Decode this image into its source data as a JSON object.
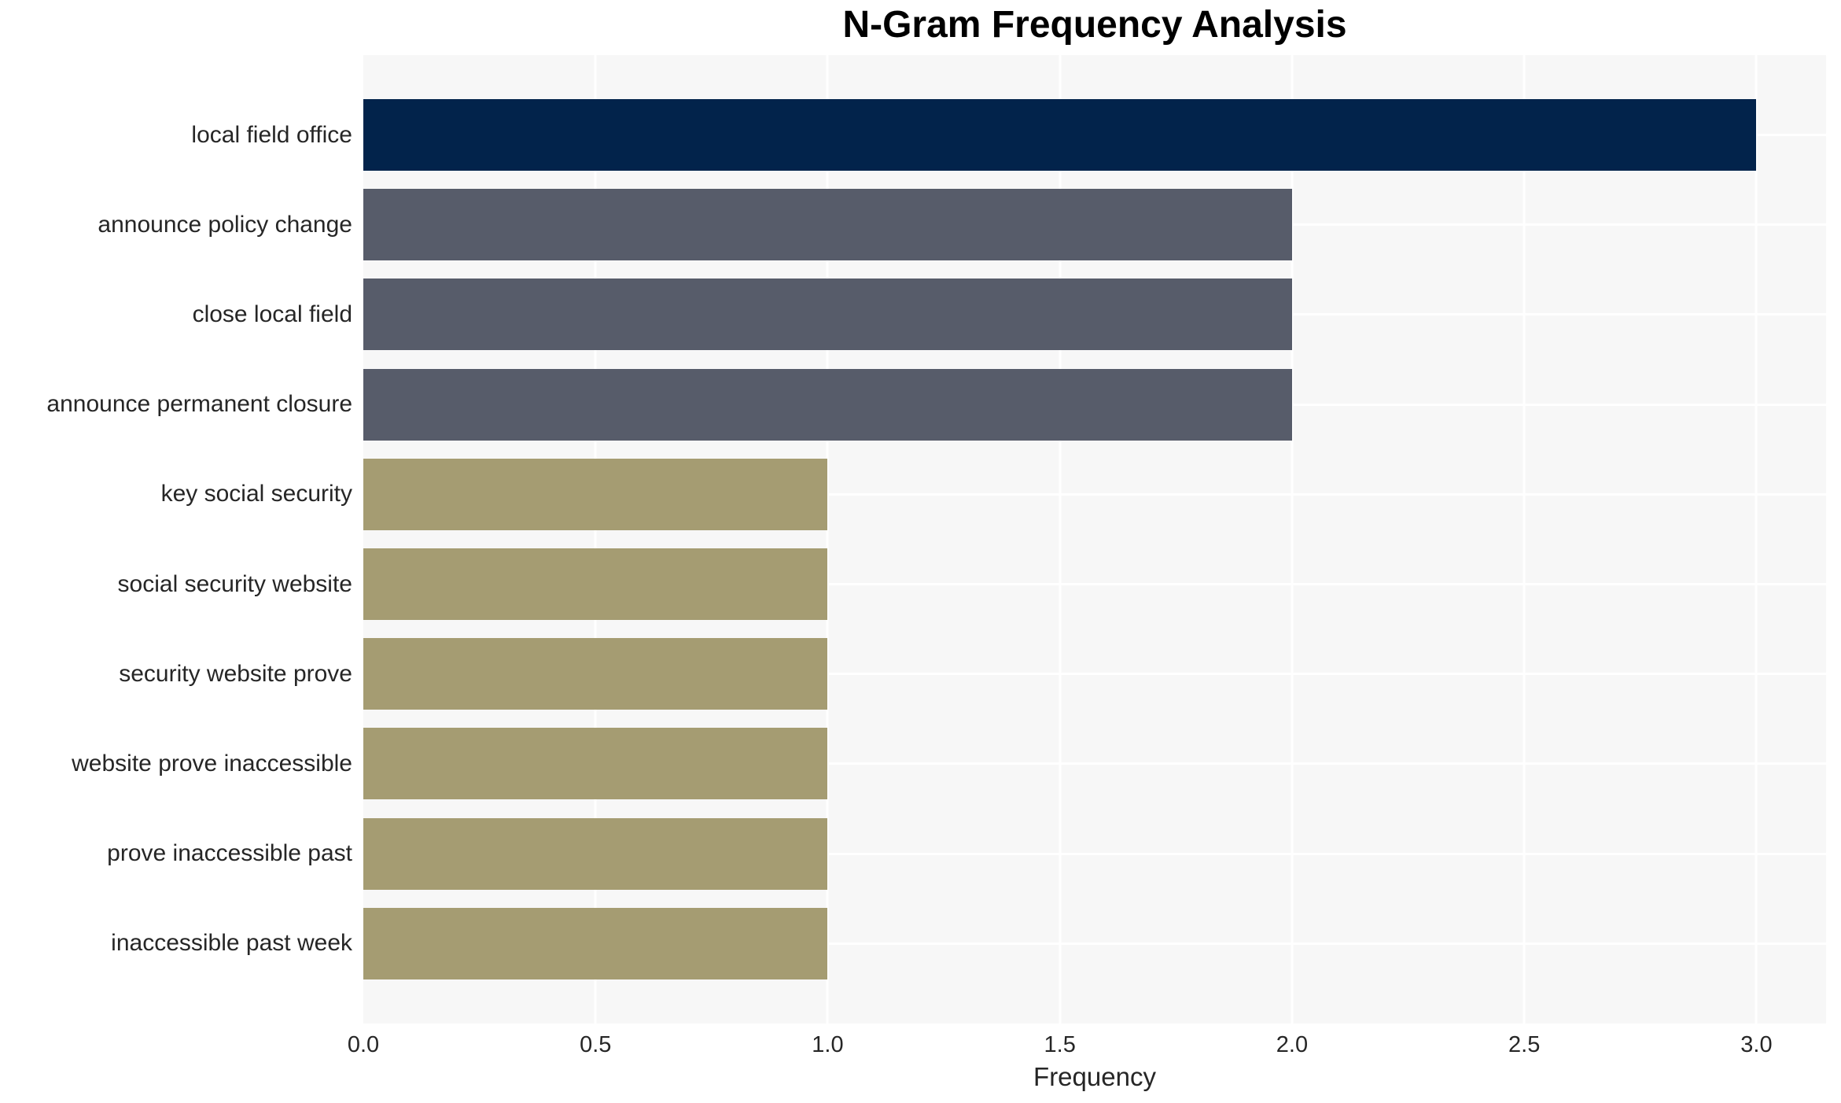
{
  "chart_data": {
    "type": "bar",
    "orientation": "horizontal",
    "title": "N-Gram Frequency Analysis",
    "xlabel": "Frequency",
    "ylabel": "",
    "categories": [
      "local field office",
      "announce policy change",
      "close local field",
      "announce permanent closure",
      "key social security",
      "social security website",
      "security website prove",
      "website prove inaccessible",
      "prove inaccessible past",
      "inaccessible past week"
    ],
    "values": [
      3,
      2,
      2,
      2,
      1,
      1,
      1,
      1,
      1,
      1
    ],
    "bar_colors": [
      "#02234B",
      "#575C6A",
      "#575C6A",
      "#575C6A",
      "#A59C72",
      "#A59C72",
      "#A59C72",
      "#A59C72",
      "#A59C72",
      "#A59C72"
    ],
    "xlim": [
      0,
      3.15
    ],
    "xticks": [
      0.0,
      0.5,
      1.0,
      1.5,
      2.0,
      2.5,
      3.0
    ],
    "xtick_labels": [
      "0.0",
      "0.5",
      "1.0",
      "1.5",
      "2.0",
      "2.5",
      "3.0"
    ],
    "grid": true,
    "legend": false,
    "colors": {
      "plot_background": "#F7F7F7",
      "grid_line": "#FFFFFF",
      "tick_text": "#262626",
      "title_text": "#000000"
    }
  }
}
